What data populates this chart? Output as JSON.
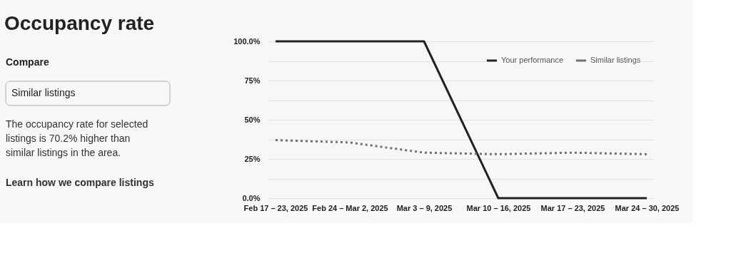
{
  "chart_data": {
    "type": "line",
    "title": "Occupancy rate",
    "annotations": [
      "Compare",
      "Similar listings",
      "The occupancy rate for selected listings is 70.2% higher than similar listings in the area.",
      "Learn how we compare listings"
    ],
    "categories": [
      "Feb 17 – 23, 2025",
      "Feb 24 – Mar 2, 2025",
      "Mar 3 – 9, 2025",
      "Mar 10 – 16, 2025",
      "Mar 17 – 23, 2025",
      "Mar 24 – 30, 2025"
    ],
    "series": [
      {
        "name": "Your performance",
        "color": "#222222",
        "line_style": "solid",
        "values": [
          100,
          100,
          100,
          0,
          0,
          0
        ]
      },
      {
        "name": "Similar listings",
        "color": "#717171",
        "line_style": "dotted",
        "values": [
          37,
          35.5,
          29,
          28,
          29,
          28
        ]
      }
    ],
    "ylim": [
      0,
      100
    ],
    "yticks": [
      {
        "value": 0,
        "label": "0.0%"
      },
      {
        "value": 12.5,
        "label": null
      },
      {
        "value": 25,
        "label": "25%"
      },
      {
        "value": 37.5,
        "label": null
      },
      {
        "value": 50,
        "label": "50%"
      },
      {
        "value": 62.5,
        "label": null
      },
      {
        "value": 75,
        "label": "75%"
      },
      {
        "value": 87.5,
        "label": null
      },
      {
        "value": 100,
        "label": "100.0%"
      }
    ],
    "grid": "y",
    "legend": "top right",
    "marker": "none"
  }
}
